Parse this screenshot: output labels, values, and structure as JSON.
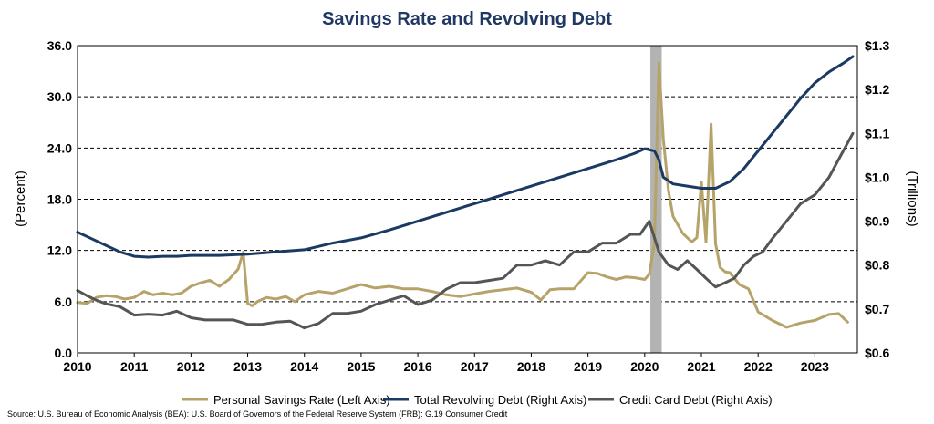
{
  "chart_data": {
    "type": "line",
    "title": "Savings Rate and Revolving Debt",
    "ylabel_left": "(Percent)",
    "ylabel_right": "(Trillions)",
    "ylim_left": [
      0,
      36
    ],
    "ylim_right": [
      0.6,
      1.3
    ],
    "xlim": [
      2010,
      2023.75
    ],
    "x_ticks": [
      "2010",
      "2011",
      "2012",
      "2013",
      "2014",
      "2015",
      "2016",
      "2017",
      "2018",
      "2019",
      "2020",
      "2021",
      "2022",
      "2023"
    ],
    "y_ticks_left": [
      "0.0",
      "6.0",
      "12.0",
      "18.0",
      "24.0",
      "30.0",
      "36.0"
    ],
    "y_ticks_right": [
      "$0.6",
      "$0.7",
      "$0.8",
      "$0.9",
      "$1.0",
      "$1.1",
      "$1.2",
      "$1.3"
    ],
    "grid": "horizontal dashed",
    "recession_shading": [
      2020.1,
      2020.3
    ],
    "legend_position": "bottom",
    "source": "Source: U.S. Bureau of Economic Analysis (BEA): U.S. Board of Governors of the Federal Reserve System (FRB): G.19 Consumer Credit",
    "series": [
      {
        "name": "Personal Savings Rate (Left Axis)",
        "axis": "left",
        "color": "#b5a36a",
        "x": [
          2010.0,
          2010.17,
          2010.33,
          2010.5,
          2010.67,
          2010.83,
          2011.0,
          2011.17,
          2011.33,
          2011.5,
          2011.67,
          2011.83,
          2012.0,
          2012.17,
          2012.33,
          2012.5,
          2012.67,
          2012.83,
          2012.92,
          2013.0,
          2013.08,
          2013.17,
          2013.33,
          2013.5,
          2013.67,
          2013.83,
          2014.0,
          2014.25,
          2014.5,
          2014.75,
          2015.0,
          2015.25,
          2015.5,
          2015.75,
          2016.0,
          2016.25,
          2016.5,
          2016.75,
          2017.0,
          2017.25,
          2017.5,
          2017.75,
          2018.0,
          2018.17,
          2018.33,
          2018.5,
          2018.75,
          2019.0,
          2019.17,
          2019.33,
          2019.5,
          2019.67,
          2019.83,
          2020.0,
          2020.08,
          2020.17,
          2020.25,
          2020.33,
          2020.42,
          2020.5,
          2020.67,
          2020.83,
          2020.92,
          2021.0,
          2021.08,
          2021.17,
          2021.25,
          2021.33,
          2021.42,
          2021.5,
          2021.67,
          2021.83,
          2022.0,
          2022.25,
          2022.5,
          2022.75,
          2023.0,
          2023.25,
          2023.42,
          2023.58
        ],
        "values": [
          5.9,
          5.8,
          6.5,
          6.7,
          6.6,
          6.3,
          6.5,
          7.2,
          6.8,
          7.0,
          6.8,
          7.0,
          7.8,
          8.2,
          8.5,
          7.8,
          8.6,
          9.8,
          11.8,
          5.8,
          5.5,
          6.0,
          6.5,
          6.3,
          6.6,
          6.0,
          6.8,
          7.2,
          7.0,
          7.5,
          8.0,
          7.6,
          7.8,
          7.5,
          7.5,
          7.2,
          6.8,
          6.6,
          6.9,
          7.2,
          7.4,
          7.6,
          7.1,
          6.2,
          7.4,
          7.5,
          7.5,
          9.4,
          9.3,
          8.9,
          8.6,
          8.9,
          8.8,
          8.6,
          9.2,
          12.8,
          34.0,
          25.0,
          19.0,
          16.0,
          14.0,
          13.0,
          13.5,
          20.0,
          13.0,
          26.8,
          12.8,
          10.0,
          9.5,
          9.4,
          8.0,
          7.5,
          4.8,
          3.8,
          3.0,
          3.5,
          3.8,
          4.5,
          4.6,
          3.6
        ]
      },
      {
        "name": "Total Revolving Debt (Right Axis)",
        "axis": "right",
        "color": "#1a3a63",
        "x": [
          2010.0,
          2010.25,
          2010.5,
          2010.75,
          2011.0,
          2011.25,
          2011.5,
          2011.75,
          2012.0,
          2012.5,
          2013.0,
          2013.5,
          2014.0,
          2014.5,
          2015.0,
          2015.5,
          2016.0,
          2016.5,
          2017.0,
          2017.5,
          2018.0,
          2018.5,
          2019.0,
          2019.5,
          2019.83,
          2020.0,
          2020.17,
          2020.25,
          2020.33,
          2020.5,
          2020.75,
          2021.0,
          2021.25,
          2021.5,
          2021.75,
          2022.0,
          2022.25,
          2022.5,
          2022.75,
          2023.0,
          2023.25,
          2023.5,
          2023.67
        ],
        "values": [
          0.875,
          0.86,
          0.845,
          0.83,
          0.82,
          0.818,
          0.82,
          0.82,
          0.822,
          0.822,
          0.825,
          0.83,
          0.835,
          0.85,
          0.862,
          0.88,
          0.9,
          0.92,
          0.94,
          0.96,
          0.98,
          1.0,
          1.02,
          1.04,
          1.055,
          1.065,
          1.06,
          1.04,
          1.0,
          0.985,
          0.98,
          0.975,
          0.975,
          0.99,
          1.02,
          1.06,
          1.1,
          1.14,
          1.18,
          1.215,
          1.24,
          1.26,
          1.275
        ]
      },
      {
        "name": "Credit Card Debt (Right Axis)",
        "axis": "right",
        "color": "#555555",
        "x": [
          2010.0,
          2010.17,
          2010.33,
          2010.5,
          2010.75,
          2011.0,
          2011.25,
          2011.5,
          2011.75,
          2012.0,
          2012.25,
          2012.5,
          2012.75,
          2013.0,
          2013.25,
          2013.5,
          2013.75,
          2014.0,
          2014.25,
          2014.5,
          2014.75,
          2015.0,
          2015.25,
          2015.5,
          2015.75,
          2016.0,
          2016.25,
          2016.5,
          2016.75,
          2017.0,
          2017.25,
          2017.5,
          2017.75,
          2018.0,
          2018.25,
          2018.5,
          2018.75,
          2019.0,
          2019.25,
          2019.5,
          2019.75,
          2019.92,
          2020.08,
          2020.25,
          2020.42,
          2020.58,
          2020.75,
          2020.92,
          2021.08,
          2021.25,
          2021.42,
          2021.58,
          2021.75,
          2021.92,
          2022.08,
          2022.25,
          2022.5,
          2022.75,
          2023.0,
          2023.25,
          2023.5,
          2023.67
        ],
        "values": [
          0.742,
          0.73,
          0.72,
          0.712,
          0.705,
          0.686,
          0.688,
          0.686,
          0.695,
          0.68,
          0.675,
          0.675,
          0.675,
          0.665,
          0.665,
          0.67,
          0.672,
          0.657,
          0.667,
          0.69,
          0.69,
          0.695,
          0.71,
          0.72,
          0.73,
          0.71,
          0.72,
          0.745,
          0.76,
          0.76,
          0.765,
          0.77,
          0.8,
          0.8,
          0.81,
          0.8,
          0.83,
          0.83,
          0.85,
          0.85,
          0.87,
          0.87,
          0.9,
          0.83,
          0.8,
          0.79,
          0.81,
          0.79,
          0.77,
          0.75,
          0.76,
          0.77,
          0.8,
          0.82,
          0.83,
          0.86,
          0.9,
          0.94,
          0.96,
          1.0,
          1.06,
          1.1
        ]
      }
    ]
  }
}
